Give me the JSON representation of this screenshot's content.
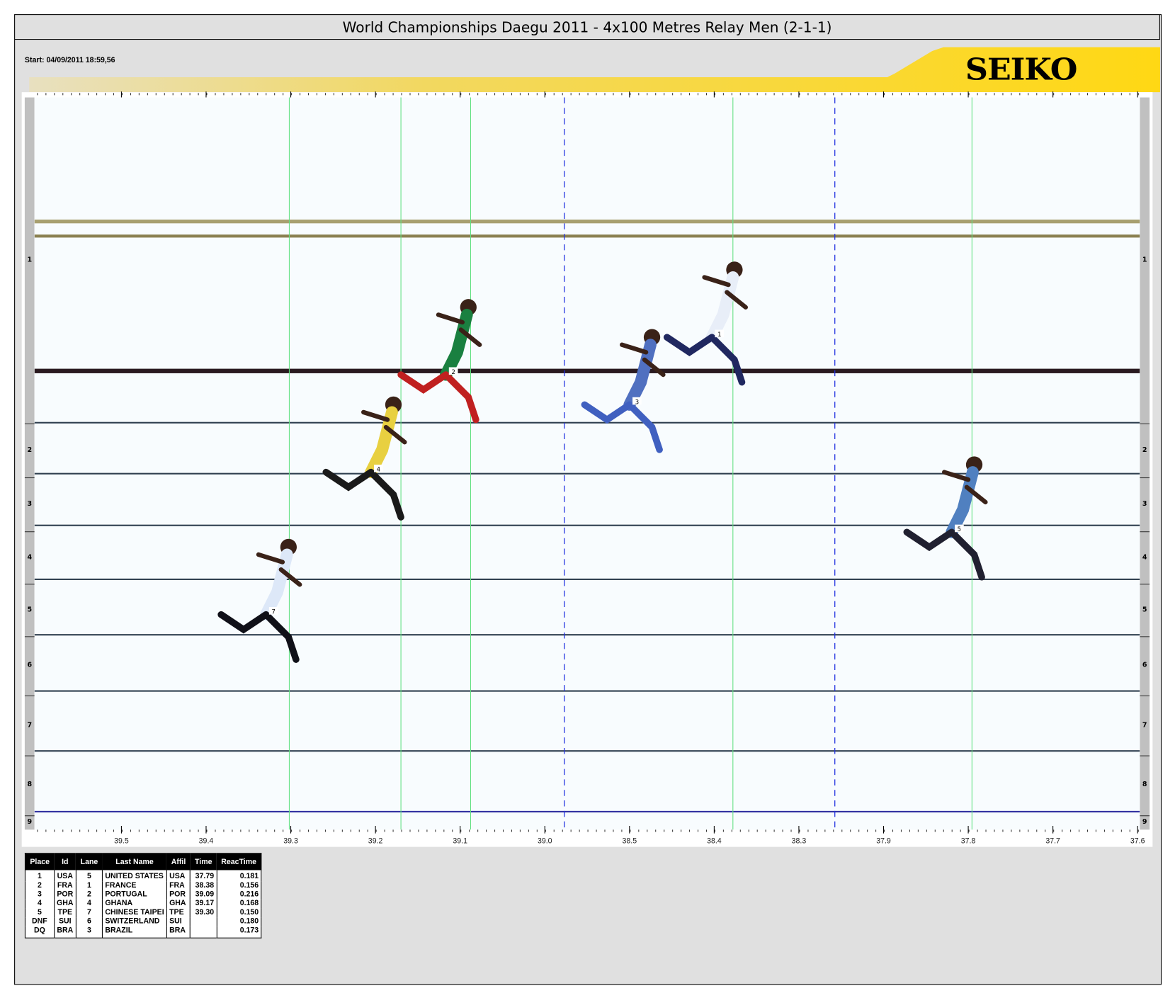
{
  "header": {
    "title": "World Championships Daegu 2011 - 4x100 Metres Relay Men (2-1-1)",
    "start": "Start: 04/09/2011 18:59,56",
    "logo": "SEIKO",
    "accent": "#ffd814"
  },
  "axis": {
    "ticks": [
      "39.5",
      "39.4",
      "39.3",
      "39.2",
      "39.1",
      "39.0",
      "38.5",
      "38.4",
      "38.3",
      "37.9",
      "37.8",
      "37.7",
      "37.6"
    ]
  },
  "lanes": [
    "1",
    "2",
    "3",
    "4",
    "5",
    "6",
    "7",
    "8",
    "9"
  ],
  "results": {
    "columns": [
      "Place",
      "Id",
      "Lane",
      "Last Name",
      "Affil",
      "Time",
      "ReacTime"
    ],
    "rows": [
      [
        "1",
        "USA",
        "5",
        "UNITED STATES",
        "USA",
        "37.79",
        "0.181"
      ],
      [
        "2",
        "FRA",
        "1",
        "FRANCE",
        "FRA",
        "38.38",
        "0.156"
      ],
      [
        "3",
        "POR",
        "2",
        "PORTUGAL",
        "POR",
        "39.09",
        "0.216"
      ],
      [
        "4",
        "GHA",
        "4",
        "GHANA",
        "GHA",
        "39.17",
        "0.168"
      ],
      [
        "5",
        "TPE",
        "7",
        "CHINESE TAIPEI",
        "TPE",
        "39.30",
        "0.150"
      ],
      [
        "DNF",
        "SUI",
        "6",
        "SWITZERLAND",
        "SUI",
        "",
        "0.180"
      ],
      [
        "DQ",
        "BRA",
        "3",
        "BRAZIL",
        "BRA",
        "",
        "0.173"
      ]
    ]
  }
}
